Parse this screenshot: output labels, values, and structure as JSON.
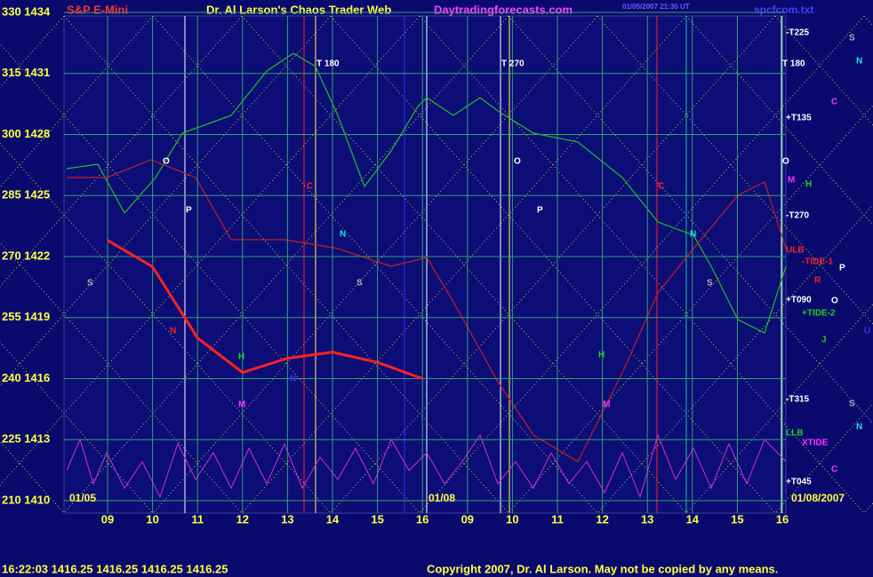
{
  "chart_data": {
    "type": "line",
    "title": "Dr. Al Larson's Chaos Trader Web",
    "site": "Daytradingforecasts.com",
    "file": "spcfcom.txt",
    "timestamp": "01/05/2007 21:30 UT",
    "series": [
      {
        "name": "S&P E-Mini",
        "color": "#ff2020",
        "values": [
          1422.8,
          1421.5,
          1418,
          1416.3,
          1417,
          1417.3,
          1416.8,
          1416,
          null,
          null,
          null,
          null,
          null,
          null,
          null,
          null
        ]
      }
    ],
    "categories": [
      "09",
      "10",
      "11",
      "12",
      "13",
      "14",
      "15",
      "16",
      "09",
      "10",
      "11",
      "12",
      "13",
      "14",
      "15",
      "16"
    ],
    "dates": [
      "01/05",
      "01/08",
      "01/08/2007"
    ],
    "ylim": [
      1410,
      1434
    ],
    "yticks": [
      {
        "value": 1434,
        "label": "330 1434"
      },
      {
        "value": 1431,
        "label": "315 1431"
      },
      {
        "value": 1428,
        "label": "300 1428"
      },
      {
        "value": 1425,
        "label": "285 1425"
      },
      {
        "value": 1422,
        "label": "270 1422"
      },
      {
        "value": 1419,
        "label": "255 1419"
      },
      {
        "value": 1416,
        "label": "240 1416"
      },
      {
        "value": 1413,
        "label": "225 1413"
      },
      {
        "value": 1410,
        "label": "210 1410"
      }
    ],
    "grid": true,
    "annotations": [
      "T 180",
      "T 270",
      "O",
      "P",
      "C",
      "N",
      "S",
      "S",
      "N",
      "H",
      "M",
      "N",
      "O",
      "P",
      "N",
      "S",
      "H",
      "M",
      "C",
      "O",
      "-T225",
      "T 180",
      "+T135",
      "-T270",
      "ULB",
      "-TIDE-1",
      "+T090",
      "+TIDE-2",
      "-T315",
      "LLB",
      "XTIDE",
      "+T045",
      "S",
      "N",
      "C",
      "M",
      "H",
      "P",
      "R",
      "O",
      "J",
      "U",
      "S",
      "N",
      "C"
    ],
    "status": "16:22:03  1416.25  1416.25  1416.25  1416.25",
    "copyright": "Copyright 2007, Dr. Al Larson. May not be copied by any means."
  }
}
